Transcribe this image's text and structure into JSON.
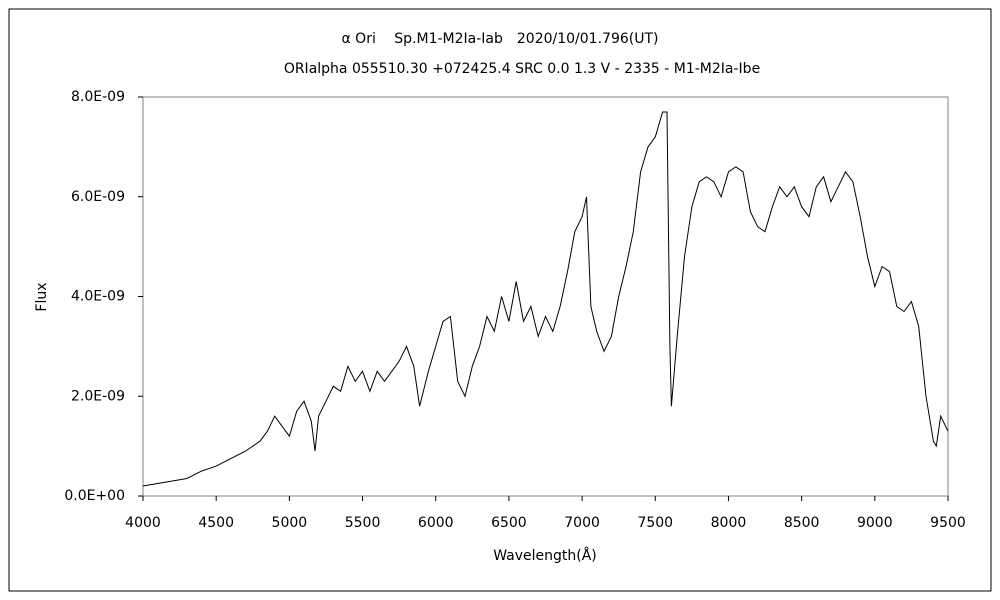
{
  "chart_data": {
    "type": "line",
    "title": "α Ori　 Sp.M1-M2Ia-Iab　2020/10/01.796(UT)",
    "subtitle": "ORIalpha 055510.30 +072425.4 SRC 0.0 1.3 V - 2335 - M1-M2Ia-Ibe",
    "x_label": "Wavelength(Å)",
    "y_label": "Flux",
    "xlim": [
      4000,
      9500
    ],
    "xticks": [
      4000,
      4500,
      5000,
      5500,
      6000,
      6500,
      7000,
      7500,
      8000,
      8500,
      9000,
      9500
    ],
    "ylim": [
      0,
      8e-09
    ],
    "yticks": [
      {
        "value": 0,
        "label": "0.0E+00"
      },
      {
        "value": 2e-09,
        "label": "2.0E-09"
      },
      {
        "value": 4e-09,
        "label": "4.0E-09"
      },
      {
        "value": 6e-09,
        "label": "6.0E-09"
      },
      {
        "value": 8e-09,
        "label": "8.0E-09"
      }
    ],
    "grid": false,
    "series": [
      {
        "color": "#000000",
        "x": [
          4000,
          4100,
          4200,
          4300,
          4400,
          4500,
          4600,
          4700,
          4800,
          4850,
          4900,
          4950,
          5000,
          5050,
          5100,
          5150,
          5175,
          5200,
          5250,
          5300,
          5350,
          5400,
          5450,
          5500,
          5550,
          5600,
          5650,
          5700,
          5750,
          5800,
          5850,
          5890,
          5950,
          6000,
          6050,
          6100,
          6150,
          6200,
          6250,
          6300,
          6350,
          6400,
          6450,
          6500,
          6550,
          6600,
          6650,
          6700,
          6750,
          6800,
          6850,
          6900,
          6950,
          7000,
          7030,
          7060,
          7100,
          7150,
          7200,
          7250,
          7300,
          7350,
          7400,
          7450,
          7500,
          7550,
          7580,
          7600,
          7610,
          7650,
          7700,
          7750,
          7800,
          7850,
          7900,
          7950,
          8000,
          8050,
          8100,
          8150,
          8200,
          8250,
          8300,
          8350,
          8400,
          8450,
          8500,
          8550,
          8600,
          8650,
          8700,
          8750,
          8800,
          8850,
          8900,
          8950,
          9000,
          9050,
          9100,
          9150,
          9200,
          9250,
          9300,
          9350,
          9400,
          9420,
          9450,
          9500
        ],
        "values": [
          2e-10,
          2.5e-10,
          3e-10,
          3.5e-10,
          5e-10,
          6e-10,
          7.5e-10,
          9e-10,
          1.1e-09,
          1.3e-09,
          1.6e-09,
          1.4e-09,
          1.2e-09,
          1.7e-09,
          1.9e-09,
          1.5e-09,
          9e-10,
          1.6e-09,
          1.9e-09,
          2.2e-09,
          2.1e-09,
          2.6e-09,
          2.3e-09,
          2.5e-09,
          2.1e-09,
          2.5e-09,
          2.3e-09,
          2.5e-09,
          2.7e-09,
          3e-09,
          2.6e-09,
          1.8e-09,
          2.5e-09,
          3e-09,
          3.5e-09,
          3.6e-09,
          2.3e-09,
          2e-09,
          2.6e-09,
          3e-09,
          3.6e-09,
          3.3e-09,
          4e-09,
          3.5e-09,
          4.3e-09,
          3.5e-09,
          3.8e-09,
          3.2e-09,
          3.6e-09,
          3.3e-09,
          3.8e-09,
          4.5e-09,
          5.3e-09,
          5.6e-09,
          6e-09,
          3.8e-09,
          3.3e-09,
          2.9e-09,
          3.2e-09,
          4e-09,
          4.6e-09,
          5.3e-09,
          6.5e-09,
          7e-09,
          7.2e-09,
          7.7e-09,
          7.7e-09,
          3e-09,
          1.8e-09,
          3.2e-09,
          4.8e-09,
          5.8e-09,
          6.3e-09,
          6.4e-09,
          6.3e-09,
          6e-09,
          6.5e-09,
          6.6e-09,
          6.5e-09,
          5.7e-09,
          5.4e-09,
          5.3e-09,
          5.8e-09,
          6.2e-09,
          6e-09,
          6.2e-09,
          5.8e-09,
          5.6e-09,
          6.2e-09,
          6.4e-09,
          5.9e-09,
          6.2e-09,
          6.5e-09,
          6.3e-09,
          5.6e-09,
          4.8e-09,
          4.2e-09,
          4.6e-09,
          4.5e-09,
          3.8e-09,
          3.7e-09,
          3.9e-09,
          3.4e-09,
          2e-09,
          1.1e-09,
          1e-09,
          1.6e-09,
          1.3e-09
        ]
      }
    ]
  }
}
